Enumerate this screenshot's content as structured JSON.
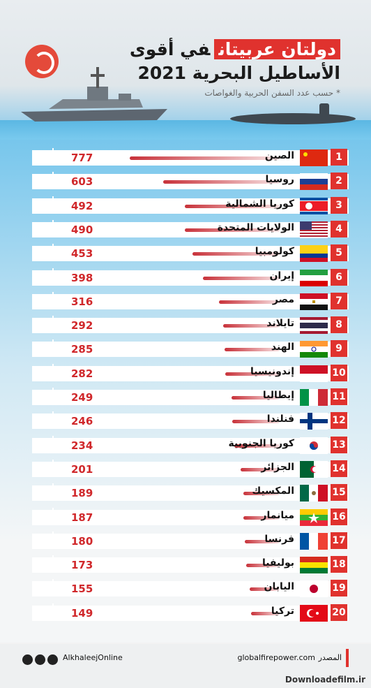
{
  "header": {
    "title_highlight": "دولتان عربيتان",
    "title_rest": "في أقوى",
    "title_line2": "الأساطيل البحرية 2021",
    "subtitle": "* حسب عدد السفن الحربية والغواصات"
  },
  "chart_data": {
    "type": "bar",
    "orientation": "horizontal",
    "bar_color": "#c8323a",
    "categories": [
      "الصين",
      "روسيا",
      "كوريا الشمالية",
      "الولايات المتحدة",
      "كولومبيا",
      "إيران",
      "مصر",
      "تايلاند",
      "الهند",
      "إندونيسيا",
      "إيطاليا",
      "فنلندا",
      "كوريا الجنوبية",
      "الجزائر",
      "المكسيك",
      "ميانمار",
      "فرنسا",
      "بوليفيا",
      "اليابان",
      "تركيا"
    ],
    "ranks": [
      "1",
      "2",
      "3",
      "4",
      "5",
      "6",
      "7",
      "8",
      "9",
      "10",
      "11",
      "12",
      "13",
      "14",
      "15",
      "16",
      "17",
      "18",
      "19",
      "20"
    ],
    "values": [
      777,
      603,
      492,
      490,
      453,
      398,
      316,
      292,
      285,
      282,
      249,
      246,
      234,
      201,
      189,
      187,
      180,
      173,
      155,
      149
    ],
    "flags": [
      "china",
      "russia",
      "north-korea",
      "usa",
      "colombia",
      "iran",
      "egypt",
      "thailand",
      "india",
      "indonesia",
      "italy",
      "finland",
      "south-korea",
      "algeria",
      "mexico",
      "myanmar",
      "france",
      "bolivia",
      "japan",
      "turkey"
    ]
  },
  "footer": {
    "handle": "AlkhaleejOnline",
    "source": "globalfirepower.com",
    "source_label": "المصدر",
    "watermark": "Downloadefilm.ir"
  }
}
